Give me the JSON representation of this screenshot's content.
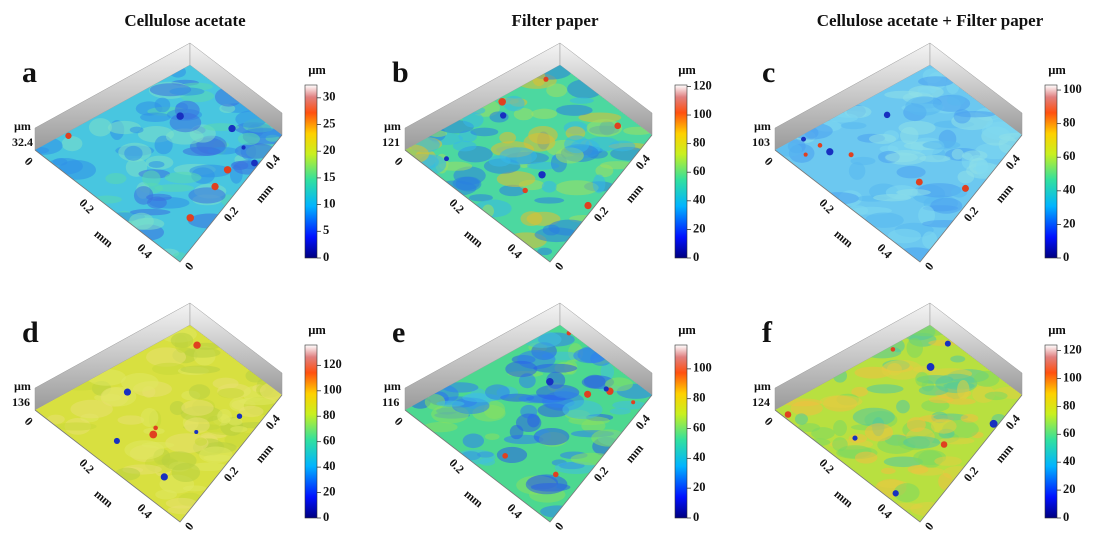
{
  "column_titles": [
    "Cellulose acetate",
    "Filter paper",
    "Cellulose acetate + Filter paper"
  ],
  "panels": [
    {
      "letter": "a",
      "unit": "µm",
      "colorbar": {
        "lim": [
          0,
          32.4
        ],
        "ticks": [
          0,
          5,
          10,
          15,
          20,
          25,
          30
        ]
      },
      "x_axis": {
        "ticks": [
          "0",
          "0.2",
          "0.4"
        ],
        "label": "mm"
      },
      "y_axis": {
        "ticks": [
          "0",
          "0.2",
          "0.4"
        ],
        "label": "mm"
      }
    },
    {
      "letter": "b",
      "unit": "µm",
      "colorbar": {
        "lim": [
          0,
          121
        ],
        "ticks": [
          0,
          20,
          40,
          60,
          80,
          100,
          120
        ]
      },
      "x_axis": {
        "ticks": [
          "0",
          "0.2",
          "0.4"
        ],
        "label": "mm"
      },
      "y_axis": {
        "ticks": [
          "0",
          "0.2",
          "0.4"
        ],
        "label": "mm"
      }
    },
    {
      "letter": "c",
      "unit": "µm",
      "colorbar": {
        "lim": [
          0,
          103
        ],
        "ticks": [
          0,
          20,
          40,
          60,
          80,
          100
        ]
      },
      "x_axis": {
        "ticks": [
          "0",
          "0.2",
          "0.4"
        ],
        "label": "mm"
      },
      "y_axis": {
        "ticks": [
          "0",
          "0.2",
          "0.4"
        ],
        "label": "mm"
      }
    },
    {
      "letter": "d",
      "unit": "µm",
      "colorbar": {
        "lim": [
          0,
          136
        ],
        "ticks": [
          0,
          20,
          40,
          60,
          80,
          100,
          120
        ]
      },
      "x_axis": {
        "ticks": [
          "0",
          "0.2",
          "0.4"
        ],
        "label": "mm"
      },
      "y_axis": {
        "ticks": [
          "0",
          "0.2",
          "0.4"
        ],
        "label": "mm"
      }
    },
    {
      "letter": "e",
      "unit": "µm",
      "colorbar": {
        "lim": [
          0,
          116
        ],
        "ticks": [
          0,
          20,
          40,
          60,
          80,
          100
        ]
      },
      "x_axis": {
        "ticks": [
          "0",
          "0.2",
          "0.4"
        ],
        "label": "mm"
      },
      "y_axis": {
        "ticks": [
          "0",
          "0.2",
          "0.4"
        ],
        "label": "mm"
      }
    },
    {
      "letter": "f",
      "unit": "µm",
      "colorbar": {
        "lim": [
          0,
          124
        ],
        "ticks": [
          0,
          20,
          40,
          60,
          80,
          100,
          120
        ]
      },
      "x_axis": {
        "ticks": [
          "0",
          "0.2",
          "0.4"
        ],
        "label": "mm"
      },
      "y_axis": {
        "ticks": [
          "0",
          "0.2",
          "0.4"
        ],
        "label": "mm"
      }
    }
  ]
}
